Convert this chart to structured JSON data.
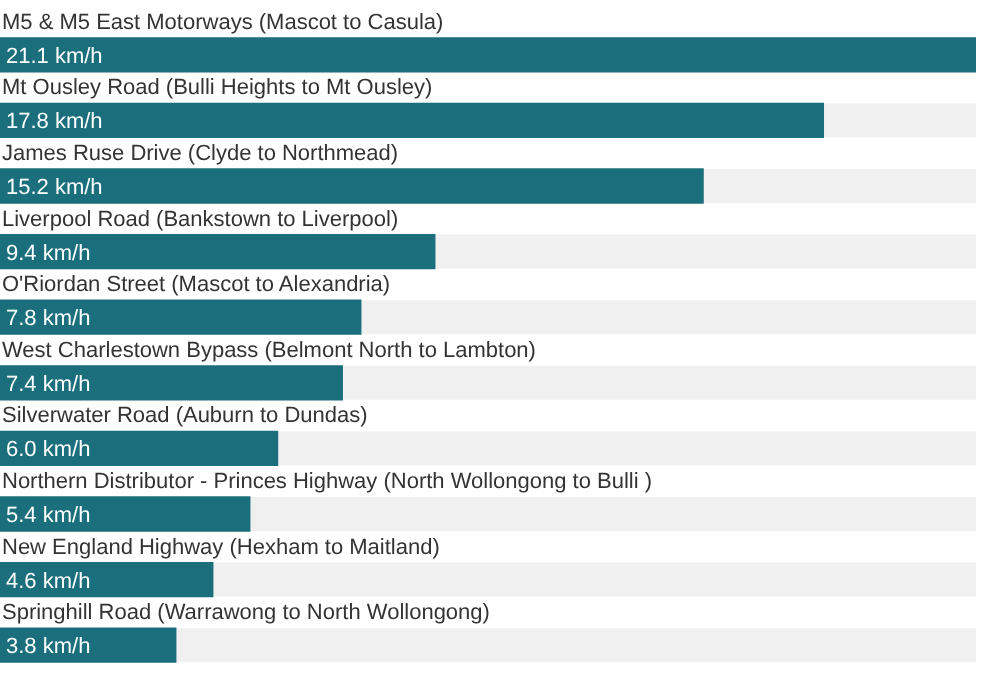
{
  "chart_data": {
    "type": "bar",
    "orientation": "horizontal",
    "categories": [
      "M5 & M5 East Motorways (Mascot to Casula)",
      "Mt Ousley Road (Bulli Heights to Mt Ousley)",
      "James Ruse Drive (Clyde to Northmead)",
      "Liverpool Road (Bankstown to Liverpool)",
      "O'Riordan Street (Mascot to Alexandria)",
      "West Charlestown Bypass (Belmont North to Lambton)",
      "Silverwater Road (Auburn to Dundas)",
      "Northern Distributor - Princes Highway (North Wollongong to Bulli )",
      "New England Highway (Hexham to Maitland)",
      "Springhill Road (Warrawong to North Wollongong)"
    ],
    "values": [
      21.1,
      17.8,
      15.2,
      9.4,
      7.8,
      7.4,
      6.0,
      5.4,
      4.6,
      3.8
    ],
    "value_labels": [
      "21.1 km/h",
      "17.8 km/h",
      "15.2 km/h",
      "9.4 km/h",
      "7.8 km/h",
      "7.4 km/h",
      "6.0 km/h",
      "5.4 km/h",
      "4.6 km/h",
      "3.8 km/h"
    ],
    "color": "#1b6f7d",
    "legend": false
  }
}
